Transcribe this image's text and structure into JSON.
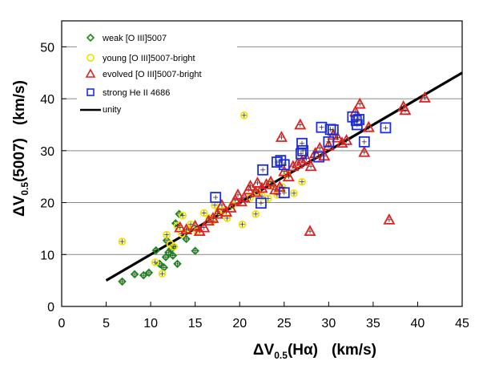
{
  "chart_data": {
    "type": "scatter",
    "title": "",
    "xlabel": {
      "delta": "ΔV",
      "sub": "0.5",
      "rest": "(Hα)",
      "units": "(km/s)"
    },
    "ylabel": {
      "delta": "ΔV",
      "sub": "0.5",
      "rest": "(5007)",
      "units": "(km/s)"
    },
    "xlim": [
      0,
      45
    ],
    "ylim": [
      0,
      55
    ],
    "xticks": [
      "0",
      "5",
      "10",
      "15",
      "20",
      "25",
      "30",
      "35",
      "40",
      "45"
    ],
    "yticks": [
      "0",
      "10",
      "20",
      "30",
      "40",
      "50"
    ],
    "grid": "horizontal",
    "legend_position": "top-left",
    "series": [
      {
        "name": "weak [O III]5007",
        "marker": "diamond",
        "color": "#1a8a1a",
        "points": [
          [
            6.8,
            4.8
          ],
          [
            8.2,
            6.2
          ],
          [
            9.2,
            6.0
          ],
          [
            9.8,
            6.5
          ],
          [
            10.6,
            10.8
          ],
          [
            11.0,
            8.2
          ],
          [
            11.5,
            7.5
          ],
          [
            11.7,
            9.5
          ],
          [
            12.0,
            10.4
          ],
          [
            12.3,
            11.0
          ],
          [
            12.5,
            9.8
          ],
          [
            13.0,
            8.2
          ],
          [
            13.2,
            17.8
          ],
          [
            12.8,
            16.0
          ],
          [
            14.0,
            13.0
          ],
          [
            15.0,
            10.7
          ],
          [
            12.6,
            11.5
          ],
          [
            11.8,
            12.7
          ]
        ]
      },
      {
        "name": "young [O III]5007-bright",
        "marker": "circle",
        "color": "#f2e400",
        "points": [
          [
            6.8,
            12.5
          ],
          [
            10.5,
            8.5
          ],
          [
            11.3,
            6.3
          ],
          [
            11.8,
            13.8
          ],
          [
            12.2,
            12.0
          ],
          [
            12.6,
            11.5
          ],
          [
            13.0,
            15.5
          ],
          [
            13.5,
            14.0
          ],
          [
            13.6,
            17.5
          ],
          [
            14.2,
            15.0
          ],
          [
            14.5,
            15.8
          ],
          [
            15.2,
            14.5
          ],
          [
            16.0,
            18.0
          ],
          [
            16.6,
            17.0
          ],
          [
            17.0,
            16.5
          ],
          [
            17.2,
            19.5
          ],
          [
            17.6,
            18.3
          ],
          [
            18.2,
            18.5
          ],
          [
            18.6,
            17.0
          ],
          [
            19.2,
            19.5
          ],
          [
            20.3,
            15.8
          ],
          [
            20.5,
            36.8
          ],
          [
            21.2,
            21.0
          ],
          [
            22.0,
            22.0
          ],
          [
            22.5,
            21.2
          ],
          [
            23.2,
            20.8
          ],
          [
            24.2,
            21.5
          ],
          [
            24.8,
            23.0
          ],
          [
            25.3,
            25.5
          ],
          [
            26.1,
            21.8
          ],
          [
            27.0,
            24.0
          ],
          [
            21.8,
            17.8
          ],
          [
            23.6,
            23.5
          ]
        ]
      },
      {
        "name": "evolved [O III]5007-bright",
        "marker": "triangle",
        "color": "#e02020",
        "points": [
          [
            13.3,
            15.2
          ],
          [
            14.0,
            14.8
          ],
          [
            15.0,
            15.5
          ],
          [
            15.5,
            14.5
          ],
          [
            16.0,
            15.2
          ],
          [
            16.5,
            16.5
          ],
          [
            17.0,
            17.0
          ],
          [
            17.5,
            17.8
          ],
          [
            18.0,
            19.5
          ],
          [
            18.5,
            18.2
          ],
          [
            19.0,
            19.0
          ],
          [
            19.5,
            20.5
          ],
          [
            19.8,
            21.5
          ],
          [
            20.2,
            20.2
          ],
          [
            20.5,
            21.0
          ],
          [
            21.0,
            22.5
          ],
          [
            21.2,
            23.2
          ],
          [
            21.8,
            22.0
          ],
          [
            22.0,
            23.8
          ],
          [
            22.5,
            22.8
          ],
          [
            23.0,
            23.5
          ],
          [
            23.5,
            24.0
          ],
          [
            24.0,
            22.5
          ],
          [
            24.5,
            23.0
          ],
          [
            24.7,
            32.6
          ],
          [
            25.0,
            26.0
          ],
          [
            25.5,
            25.0
          ],
          [
            26.0,
            27.0
          ],
          [
            26.5,
            27.5
          ],
          [
            26.8,
            35.0
          ],
          [
            27.0,
            28.0
          ],
          [
            27.5,
            28.5
          ],
          [
            28.0,
            27.0
          ],
          [
            28.5,
            29.5
          ],
          [
            29.0,
            30.5
          ],
          [
            29.5,
            29.0
          ],
          [
            30.0,
            31.0
          ],
          [
            30.5,
            33.0
          ],
          [
            31.0,
            32.5
          ],
          [
            31.5,
            31.5
          ],
          [
            32.0,
            32.0
          ],
          [
            33.0,
            37.5
          ],
          [
            33.5,
            39.0
          ],
          [
            34.0,
            29.7
          ],
          [
            34.5,
            34.5
          ],
          [
            38.4,
            38.5
          ],
          [
            38.6,
            37.8
          ],
          [
            40.8,
            40.2
          ],
          [
            27.9,
            14.5
          ],
          [
            36.8,
            16.7
          ]
        ]
      },
      {
        "name": "strong He II 4686",
        "marker": "square",
        "color": "#1c2de0",
        "points": [
          [
            17.3,
            21.0
          ],
          [
            22.4,
            19.9
          ],
          [
            22.6,
            26.3
          ],
          [
            24.2,
            27.8
          ],
          [
            24.6,
            28.1
          ],
          [
            25.0,
            21.9
          ],
          [
            25.0,
            27.3
          ],
          [
            26.9,
            29.4
          ],
          [
            27.0,
            31.4
          ],
          [
            27.1,
            30.0
          ],
          [
            28.9,
            28.8
          ],
          [
            29.2,
            34.5
          ],
          [
            30.0,
            31.7
          ],
          [
            30.2,
            34.1
          ],
          [
            30.5,
            34.0
          ],
          [
            32.7,
            36.5
          ],
          [
            33.1,
            35.8
          ],
          [
            33.2,
            35.0
          ],
          [
            33.4,
            36.0
          ],
          [
            34.0,
            31.7
          ],
          [
            36.4,
            34.4
          ]
        ]
      },
      {
        "name": "unity",
        "marker": "line",
        "color": "#000000",
        "points": [
          [
            5,
            5
          ],
          [
            45,
            45
          ]
        ]
      }
    ]
  }
}
